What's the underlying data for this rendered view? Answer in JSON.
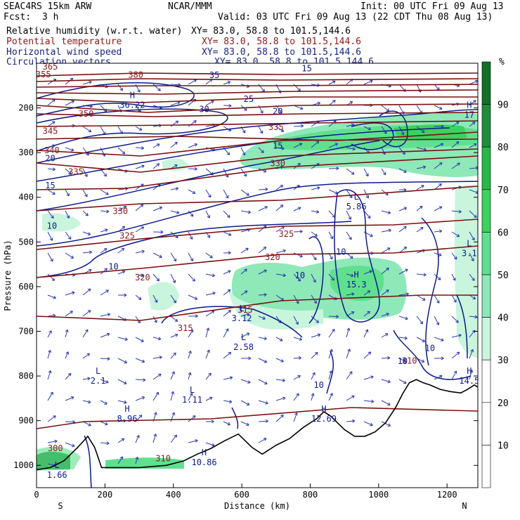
{
  "header": {
    "model": "SEAC4RS 15km ARW",
    "center": "NCAR/MMM",
    "init": "Init: 00 UTC Fri 09 Aug 13",
    "fcst_label": "Fcst:",
    "fcst_value": "3 h",
    "valid": "Valid: 03 UTC Fri 09 Aug 13 (22 CDT Thu 08 Aug 13)",
    "fields": [
      {
        "name": "Relative humidity (w.r.t. water)",
        "xy": "XY=  83.0, 58.8 to 101.5,144.6",
        "color": "#000000"
      },
      {
        "name": "Potential temperature",
        "xy": "XY=  83.0, 58.8 to 101.5,144.6",
        "color": "#8b1a1a"
      },
      {
        "name": "Horizontal wind speed",
        "xy": "XY=  83.0, 58.8 to 101.5,144.6",
        "color": "#1a237e"
      },
      {
        "name": "Circulation vectors",
        "xy": "XY=  83.0, 58.8 to 101.5,144.6",
        "color": "#1a237e"
      }
    ]
  },
  "chart_data": {
    "type": "heatmap",
    "xlabel": "Distance (km)",
    "ylabel": "Pressure (hPa)",
    "xlim": [
      0,
      1290
    ],
    "ylim": [
      1050,
      100
    ],
    "x_ticks": [
      0,
      200,
      400,
      600,
      800,
      1000,
      1200
    ],
    "y_ticks": [
      200,
      300,
      400,
      500,
      600,
      700,
      800,
      900,
      1000
    ],
    "left_end_label": "S",
    "right_end_label": "N",
    "colorbar": {
      "unit": "%",
      "levels": [
        10,
        20,
        30,
        40,
        50,
        60,
        70,
        80,
        90
      ],
      "colors": [
        "#ffffff",
        "#ffffff",
        "#ffffff",
        "#c8f5dc",
        "#8ee8b8",
        "#5fe08e",
        "#3cd25e",
        "#27b84a",
        "#1f8d3a",
        "#137028"
      ]
    },
    "theta_contour_labels": [
      {
        "text": "365",
        "x": 40,
        "p": 108
      },
      {
        "text": "355",
        "x": 20,
        "p": 125
      },
      {
        "text": "380",
        "x": 290,
        "p": 126
      },
      {
        "text": "350",
        "x": 145,
        "p": 213
      },
      {
        "text": "345",
        "x": 40,
        "p": 252
      },
      {
        "text": "340",
        "x": 45,
        "p": 295
      },
      {
        "text": "335",
        "x": 115,
        "p": 343
      },
      {
        "text": "330",
        "x": 245,
        "p": 431
      },
      {
        "text": "325",
        "x": 265,
        "p": 486
      },
      {
        "text": "320",
        "x": 310,
        "p": 580
      },
      {
        "text": "315",
        "x": 435,
        "p": 693
      },
      {
        "text": "310",
        "x": 370,
        "p": 985
      },
      {
        "text": "300",
        "x": 55,
        "p": 962
      },
      {
        "text": "335",
        "x": 700,
        "p": 243
      },
      {
        "text": "330",
        "x": 705,
        "p": 324
      },
      {
        "text": "325",
        "x": 730,
        "p": 482
      },
      {
        "text": "320",
        "x": 690,
        "p": 534
      },
      {
        "text": "310",
        "x": 1090,
        "p": 766
      },
      {
        "text": "315",
        "x": 610,
        "p": 652
      }
    ],
    "wind_contour_labels": [
      {
        "text": "15",
        "x": 790,
        "p": 112
      },
      {
        "text": "35",
        "x": 520,
        "p": 127
      },
      {
        "text": "30",
        "x": 490,
        "p": 203
      },
      {
        "text": "25",
        "x": 620,
        "p": 180
      },
      {
        "text": "20",
        "x": 705,
        "p": 208
      },
      {
        "text": "15",
        "x": 705,
        "p": 285
      },
      {
        "text": "20",
        "x": 40,
        "p": 313
      },
      {
        "text": "15",
        "x": 40,
        "p": 374
      },
      {
        "text": "10",
        "x": 45,
        "p": 464
      },
      {
        "text": "10",
        "x": 225,
        "p": 555
      },
      {
        "text": "10",
        "x": 770,
        "p": 575
      },
      {
        "text": "10",
        "x": 890,
        "p": 522
      },
      {
        "text": "10",
        "x": 1150,
        "p": 738
      },
      {
        "text": "10",
        "x": 1070,
        "p": 767
      },
      {
        "text": "10",
        "x": 825,
        "p": 820
      }
    ],
    "extrema": [
      {
        "kind": "H",
        "value": "36.22",
        "x": 280,
        "p": 178
      },
      {
        "kind": "H",
        "value": "17",
        "x": 1265,
        "p": 200
      },
      {
        "kind": "L",
        "value": "5.86",
        "x": 935,
        "p": 405
      },
      {
        "kind": "L",
        "value": "3.1",
        "x": 1265,
        "p": 510
      },
      {
        "kind": "H",
        "value": "15.3",
        "x": 935,
        "p": 580
      },
      {
        "kind": "L",
        "value": "3.12",
        "x": 600,
        "p": 655
      },
      {
        "kind": "L",
        "value": "2.58",
        "x": 605,
        "p": 720
      },
      {
        "kind": "L",
        "value": "2.1",
        "x": 180,
        "p": 795
      },
      {
        "kind": "H",
        "value": "14.5",
        "x": 1265,
        "p": 795
      },
      {
        "kind": "L",
        "value": "1.11",
        "x": 455,
        "p": 838
      },
      {
        "kind": "H",
        "value": "8.96",
        "x": 265,
        "p": 880
      },
      {
        "kind": "H",
        "value": "12.69",
        "x": 840,
        "p": 880
      },
      {
        "kind": "H",
        "value": "10.86",
        "x": 490,
        "p": 978
      },
      {
        "kind": "L",
        "value": "1.66",
        "x": 60,
        "p": 1006
      }
    ],
    "terrain": [
      [
        0,
        1010
      ],
      [
        40,
        1005
      ],
      [
        80,
        990
      ],
      [
        120,
        960
      ],
      [
        150,
        935
      ],
      [
        170,
        960
      ],
      [
        190,
        1005
      ],
      [
        240,
        1005
      ],
      [
        300,
        1005
      ],
      [
        380,
        1000
      ],
      [
        430,
        990
      ],
      [
        470,
        975
      ],
      [
        510,
        962
      ],
      [
        550,
        945
      ],
      [
        590,
        930
      ],
      [
        630,
        960
      ],
      [
        660,
        975
      ],
      [
        700,
        955
      ],
      [
        740,
        940
      ],
      [
        780,
        915
      ],
      [
        820,
        895
      ],
      [
        840,
        880
      ],
      [
        860,
        890
      ],
      [
        880,
        905
      ],
      [
        900,
        920
      ],
      [
        930,
        935
      ],
      [
        960,
        935
      ],
      [
        990,
        925
      ],
      [
        1020,
        905
      ],
      [
        1050,
        870
      ],
      [
        1070,
        840
      ],
      [
        1090,
        815
      ],
      [
        1110,
        808
      ],
      [
        1130,
        815
      ],
      [
        1150,
        820
      ],
      [
        1180,
        830
      ],
      [
        1210,
        835
      ],
      [
        1240,
        838
      ],
      [
        1260,
        830
      ],
      [
        1280,
        820
      ],
      [
        1290,
        825
      ]
    ]
  }
}
